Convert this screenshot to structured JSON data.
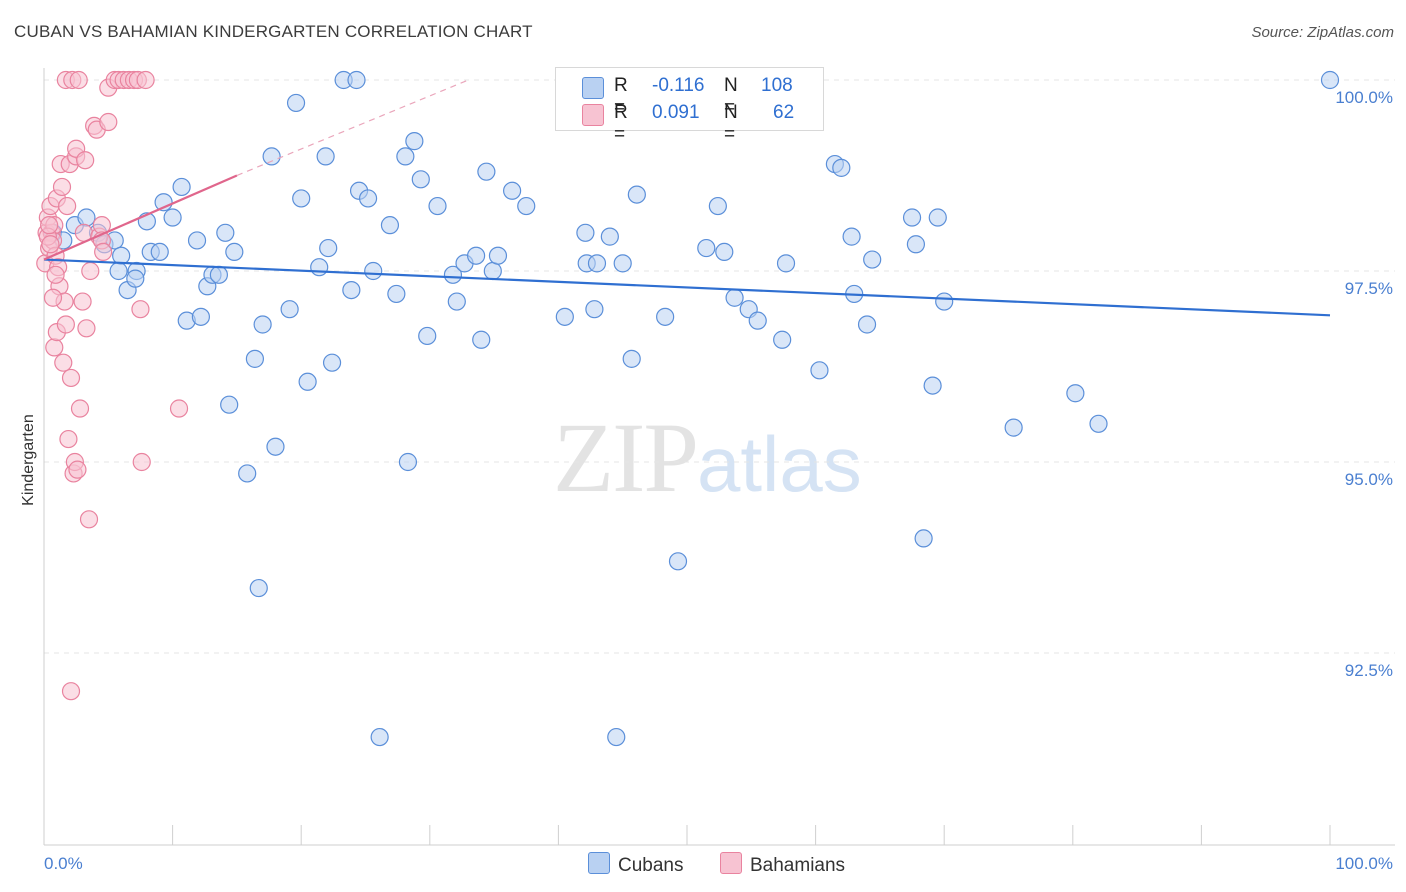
{
  "title": "CUBAN VS BAHAMIAN KINDERGARTEN CORRELATION CHART",
  "source": "Source: ZipAtlas.com",
  "watermark": {
    "zip": "ZIP",
    "atlas": "atlas"
  },
  "legend": {
    "rows": [
      {
        "r_label": "R =",
        "r_value": "-0.116",
        "n_label": "N =",
        "n_value": "108",
        "color": "#5b8fd9",
        "fill": "#b9d1f2"
      },
      {
        "r_label": "R =",
        "r_value": "0.091",
        "n_label": "N =",
        "n_value": "62",
        "color": "#e9839f",
        "fill": "#f7c3d2"
      }
    ]
  },
  "bottom_legend": [
    {
      "label": "Cubans",
      "color": "#5b8fd9",
      "fill": "#b9d1f2"
    },
    {
      "label": "Bahamians",
      "color": "#e9839f",
      "fill": "#f7c3d2"
    }
  ],
  "chart_data": {
    "type": "scatter",
    "title": "CUBAN VS BAHAMIAN KINDERGARTEN CORRELATION CHART",
    "xlabel": "",
    "ylabel": "Kindergarten",
    "xlim": [
      0,
      100
    ],
    "ylim": [
      90.0,
      100.5
    ],
    "x_ticks_labels": [
      "0.0%",
      "100.0%"
    ],
    "y_ticks": [
      92.5,
      95.0,
      97.5,
      100.0
    ],
    "y_tick_labels": [
      "92.5%",
      "95.0%",
      "97.5%",
      "100.0%"
    ],
    "grid": true,
    "series": [
      {
        "name": "Cubans",
        "color": "#5b8fd9",
        "fill": "#b9d1f2",
        "trend": {
          "x0": 0,
          "y0": 97.65,
          "x1": 100,
          "y1": 96.92
        },
        "points": [
          [
            0.7,
            98.0
          ],
          [
            1.5,
            97.9
          ],
          [
            2.4,
            98.1
          ],
          [
            3.3,
            98.2
          ],
          [
            4.2,
            98.0
          ],
          [
            4.7,
            97.85
          ],
          [
            5.5,
            97.9
          ],
          [
            6.0,
            97.7
          ],
          [
            5.8,
            97.5
          ],
          [
            7.2,
            97.5
          ],
          [
            6.5,
            97.25
          ],
          [
            7.1,
            97.4
          ],
          [
            8.0,
            98.15
          ],
          [
            8.3,
            97.75
          ],
          [
            9.0,
            97.75
          ],
          [
            9.3,
            98.4
          ],
          [
            10.0,
            98.2
          ],
          [
            10.7,
            98.6
          ],
          [
            11.1,
            96.85
          ],
          [
            11.9,
            97.9
          ],
          [
            12.2,
            96.9
          ],
          [
            12.7,
            97.3
          ],
          [
            13.1,
            97.45
          ],
          [
            13.6,
            97.45
          ],
          [
            14.1,
            98.0
          ],
          [
            14.4,
            95.75
          ],
          [
            14.8,
            97.75
          ],
          [
            15.8,
            94.85
          ],
          [
            16.4,
            96.35
          ],
          [
            16.7,
            93.35
          ],
          [
            17.0,
            96.8
          ],
          [
            17.7,
            99.0
          ],
          [
            18.0,
            95.2
          ],
          [
            19.1,
            97.0
          ],
          [
            19.6,
            99.7
          ],
          [
            20.0,
            98.45
          ],
          [
            20.5,
            96.05
          ],
          [
            21.4,
            97.55
          ],
          [
            21.9,
            99.0
          ],
          [
            22.1,
            97.8
          ],
          [
            22.4,
            96.3
          ],
          [
            23.3,
            100.0
          ],
          [
            23.9,
            97.25
          ],
          [
            24.3,
            100.0
          ],
          [
            24.5,
            98.55
          ],
          [
            25.2,
            98.45
          ],
          [
            25.6,
            97.5
          ],
          [
            26.1,
            91.4
          ],
          [
            26.9,
            98.1
          ],
          [
            27.4,
            97.2
          ],
          [
            28.1,
            99.0
          ],
          [
            28.3,
            95.0
          ],
          [
            28.8,
            99.2
          ],
          [
            29.3,
            98.7
          ],
          [
            29.8,
            96.65
          ],
          [
            30.6,
            98.35
          ],
          [
            31.8,
            97.45
          ],
          [
            32.1,
            97.1
          ],
          [
            32.7,
            97.6
          ],
          [
            33.6,
            97.7
          ],
          [
            34.0,
            96.6
          ],
          [
            34.4,
            98.8
          ],
          [
            34.9,
            97.5
          ],
          [
            35.3,
            97.7
          ],
          [
            36.4,
            98.55
          ],
          [
            37.5,
            98.35
          ],
          [
            40.5,
            96.9
          ],
          [
            42.2,
            97.6
          ],
          [
            42.8,
            97.0
          ],
          [
            42.1,
            98.0
          ],
          [
            43.0,
            97.6
          ],
          [
            44.0,
            97.95
          ],
          [
            44.5,
            91.4
          ],
          [
            45.0,
            97.6
          ],
          [
            45.7,
            96.35
          ],
          [
            46.1,
            98.5
          ],
          [
            48.3,
            96.9
          ],
          [
            49.3,
            93.7
          ],
          [
            50.0,
            100.0
          ],
          [
            51.5,
            97.8
          ],
          [
            52.4,
            98.35
          ],
          [
            52.9,
            97.75
          ],
          [
            53.7,
            97.15
          ],
          [
            54.8,
            97.0
          ],
          [
            55.5,
            96.85
          ],
          [
            57.4,
            96.6
          ],
          [
            57.7,
            97.6
          ],
          [
            60.3,
            96.2
          ],
          [
            61.5,
            98.9
          ],
          [
            62.0,
            98.85
          ],
          [
            62.8,
            97.95
          ],
          [
            63.0,
            97.2
          ],
          [
            64.0,
            96.8
          ],
          [
            64.4,
            97.65
          ],
          [
            67.5,
            98.2
          ],
          [
            67.8,
            97.85
          ],
          [
            68.4,
            94.0
          ],
          [
            69.1,
            96.0
          ],
          [
            69.5,
            98.2
          ],
          [
            70.0,
            97.1
          ],
          [
            75.4,
            95.45
          ],
          [
            80.2,
            95.9
          ],
          [
            82.0,
            95.5
          ],
          [
            100.0,
            100.0
          ]
        ]
      },
      {
        "name": "Bahamians",
        "color": "#e9839f",
        "fill": "#f7c3d2",
        "trend": {
          "x0": 0,
          "y0": 97.65,
          "x1": 15,
          "y1": 98.75,
          "dash_to_x": 33,
          "dash_to_y": 100.0
        },
        "points": [
          [
            0.1,
            97.6
          ],
          [
            0.2,
            98.0
          ],
          [
            0.3,
            98.2
          ],
          [
            0.4,
            97.8
          ],
          [
            0.5,
            98.35
          ],
          [
            0.6,
            98.0
          ],
          [
            0.7,
            97.9
          ],
          [
            0.8,
            98.1
          ],
          [
            0.9,
            97.7
          ],
          [
            1.0,
            98.45
          ],
          [
            0.3,
            97.95
          ],
          [
            0.5,
            97.85
          ],
          [
            0.8,
            96.5
          ],
          [
            1.0,
            96.7
          ],
          [
            1.1,
            97.55
          ],
          [
            1.2,
            97.3
          ],
          [
            1.3,
            98.9
          ],
          [
            1.4,
            98.6
          ],
          [
            1.5,
            96.3
          ],
          [
            1.6,
            97.1
          ],
          [
            1.7,
            96.8
          ],
          [
            1.7,
            100.0
          ],
          [
            1.8,
            98.35
          ],
          [
            1.9,
            95.3
          ],
          [
            2.0,
            98.9
          ],
          [
            2.1,
            96.1
          ],
          [
            2.1,
            92.0
          ],
          [
            2.2,
            100.0
          ],
          [
            2.3,
            94.85
          ],
          [
            2.4,
            95.0
          ],
          [
            2.5,
            99.0
          ],
          [
            2.5,
            99.1
          ],
          [
            2.6,
            94.9
          ],
          [
            2.7,
            100.0
          ],
          [
            2.8,
            95.7
          ],
          [
            3.0,
            97.1
          ],
          [
            3.1,
            98.0
          ],
          [
            3.2,
            98.95
          ],
          [
            3.3,
            96.75
          ],
          [
            3.5,
            94.25
          ],
          [
            3.6,
            97.5
          ],
          [
            3.9,
            99.4
          ],
          [
            4.1,
            99.35
          ],
          [
            4.3,
            97.95
          ],
          [
            4.5,
            98.1
          ],
          [
            4.5,
            97.9
          ],
          [
            4.6,
            97.75
          ],
          [
            5.0,
            99.45
          ],
          [
            5.0,
            99.9
          ],
          [
            5.5,
            100.0
          ],
          [
            5.8,
            100.0
          ],
          [
            6.2,
            100.0
          ],
          [
            6.6,
            100.0
          ],
          [
            7.0,
            100.0
          ],
          [
            7.3,
            100.0
          ],
          [
            7.5,
            97.0
          ],
          [
            7.6,
            95.0
          ],
          [
            7.9,
            100.0
          ],
          [
            10.5,
            95.7
          ],
          [
            0.7,
            97.15
          ],
          [
            0.9,
            97.45
          ],
          [
            0.4,
            98.1
          ]
        ]
      }
    ]
  }
}
